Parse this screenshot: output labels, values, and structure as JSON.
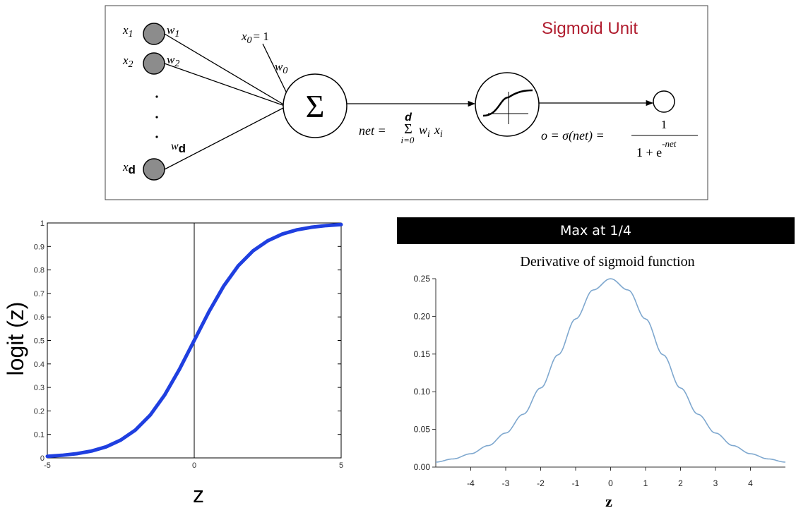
{
  "unit_diagram": {
    "title": "Sigmoid Unit",
    "title_color": "#b01c2e",
    "inputs": [
      {
        "x": "1",
        "w": "1"
      },
      {
        "x": "2",
        "w": "2"
      },
      {
        "x": "d",
        "w": "d"
      }
    ],
    "bias": {
      "x_label": "x",
      "x_sub": "0",
      "x_eq": "= 1",
      "w_label": "w",
      "w_sub": "0"
    },
    "sum_symbol": "Σ",
    "net": {
      "lhs": "net =",
      "sum": "Σ",
      "upper": "d",
      "lower": "i=0",
      "rhs_w": "w",
      "rhs_w_sub": "i",
      "rhs_x": "x",
      "rhs_x_sub": "i"
    },
    "output": {
      "lhs": "o = σ(net) =",
      "numerator": "1",
      "denominator": "1 + e",
      "exponent": "-net"
    },
    "input_node_color": "#8c8c8c"
  },
  "banner": "Max at 1/4",
  "chart_data": [
    {
      "type": "line",
      "title": "",
      "xlabel": "z",
      "ylabel": "logit (z)",
      "xlim": [
        -5,
        5
      ],
      "ylim": [
        0,
        1
      ],
      "xticks": [
        "-5",
        "0",
        "5"
      ],
      "yticks": [
        "0",
        "0.1",
        "0.2",
        "0.3",
        "0.4",
        "0.5",
        "0.6",
        "0.7",
        "0.8",
        "0.9",
        "1"
      ],
      "vertical_line_at": 0,
      "series": [
        {
          "color": "#1f3fe0",
          "x": [
            -5,
            -4.5,
            -4,
            -3.5,
            -3,
            -2.5,
            -2,
            -1.5,
            -1,
            -0.5,
            0,
            0.5,
            1,
            1.5,
            2,
            2.5,
            3,
            3.5,
            4,
            4.5,
            5
          ],
          "y": [
            0.007,
            0.011,
            0.018,
            0.029,
            0.047,
            0.076,
            0.119,
            0.182,
            0.269,
            0.378,
            0.5,
            0.622,
            0.731,
            0.818,
            0.881,
            0.924,
            0.953,
            0.971,
            0.982,
            0.989,
            0.993
          ]
        }
      ]
    },
    {
      "type": "line",
      "title": "Derivative of sigmoid function",
      "xlabel": "z",
      "ylabel": "",
      "xlim": [
        -5,
        5
      ],
      "ylim": [
        0,
        0.25
      ],
      "xticks": [
        "-4",
        "-3",
        "-2",
        "-1",
        "0",
        "1",
        "2",
        "3",
        "4"
      ],
      "yticks": [
        "0.00",
        "0.05",
        "0.10",
        "0.15",
        "0.20",
        "0.25"
      ],
      "series": [
        {
          "color": "#7fa8cf",
          "x": [
            -5,
            -4.5,
            -4,
            -3.5,
            -3,
            -2.5,
            -2,
            -1.5,
            -1,
            -0.5,
            0,
            0.5,
            1,
            1.5,
            2,
            2.5,
            3,
            3.5,
            4,
            4.5,
            5
          ],
          "y": [
            0.0066,
            0.0109,
            0.0177,
            0.0285,
            0.0452,
            0.0701,
            0.105,
            0.1491,
            0.1966,
            0.235,
            0.25,
            0.235,
            0.1966,
            0.1491,
            0.105,
            0.0701,
            0.0452,
            0.0285,
            0.0177,
            0.0109,
            0.0066
          ]
        }
      ]
    }
  ]
}
